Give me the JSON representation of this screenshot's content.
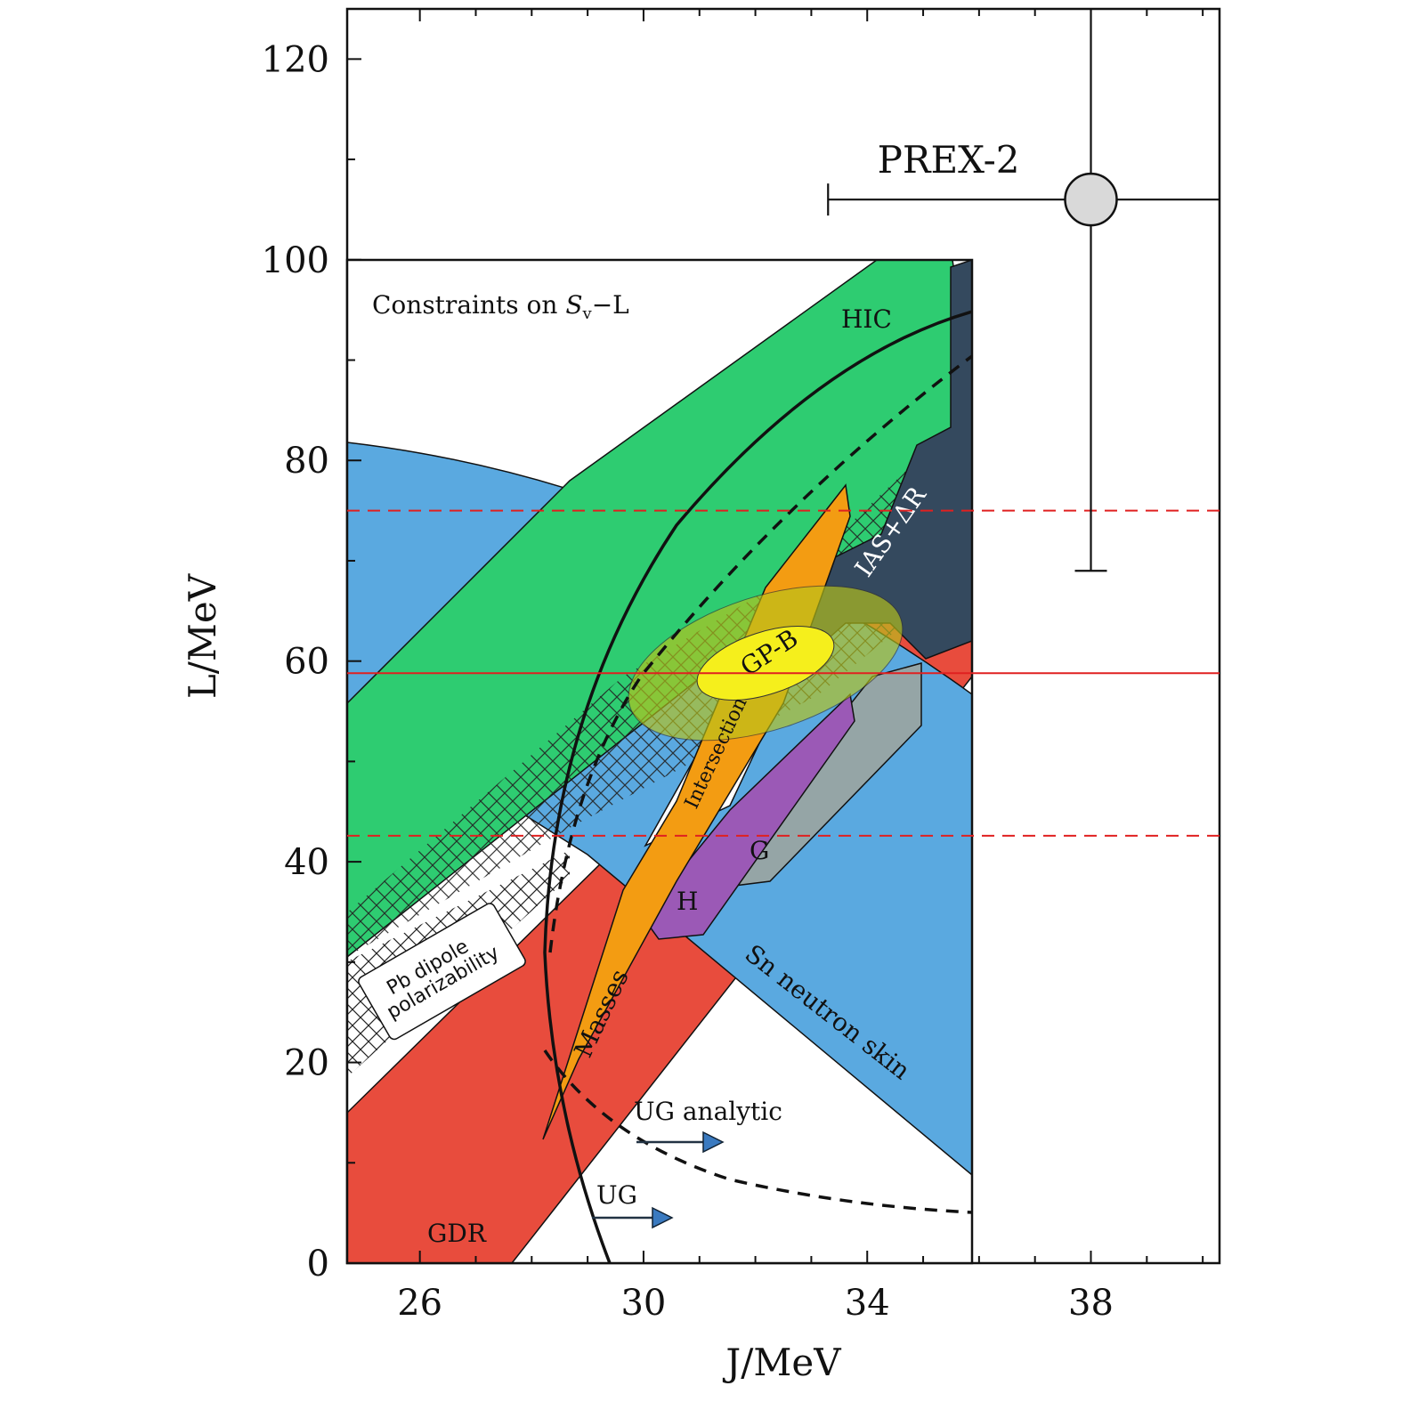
{
  "chart_data": {
    "type": "scatter",
    "title": "",
    "xlabel": "J/MeV",
    "ylabel": "L/MeV",
    "xlim": [
      24.7,
      40.3
    ],
    "ylim": [
      0,
      125
    ],
    "xticks": [
      26,
      30,
      34,
      38
    ],
    "yticks": [
      0,
      20,
      40,
      60,
      80,
      100,
      120
    ],
    "inset_label": "Constraints on S_v−L",
    "inset_extent": {
      "x": [
        24.7,
        35.9
      ],
      "y": [
        0,
        100
      ]
    },
    "point": {
      "name": "PREX-2",
      "x": 38.0,
      "y": 106,
      "xerr": [
        4.7,
        2.3
      ],
      "yerr": [
        37,
        19
      ]
    },
    "reference_lines": [
      {
        "style": "solid",
        "color": "#e02020",
        "y": 58.8
      },
      {
        "style": "dashed",
        "color": "#e02020",
        "y": 75
      },
      {
        "style": "dashed",
        "color": "#e02020",
        "y": 42.6
      }
    ],
    "region_labels": [
      "HIC",
      "IAS+ΔR",
      "GP-B",
      "Intersection",
      "G",
      "H",
      "Masses",
      "Sn neutron skin",
      "Pb dipole",
      "polarizability",
      "UG analytic",
      "UG",
      "GDR"
    ],
    "colors": {
      "blue": "#5aa9e0",
      "green": "#2ecc71",
      "red": "#e84c3d",
      "orange": "#f39c12",
      "purple": "#9b59b6",
      "grey": "#95a5a6",
      "navy": "#34495e",
      "yellow": "#f5ef1c",
      "ref_line": "#e02020"
    }
  }
}
